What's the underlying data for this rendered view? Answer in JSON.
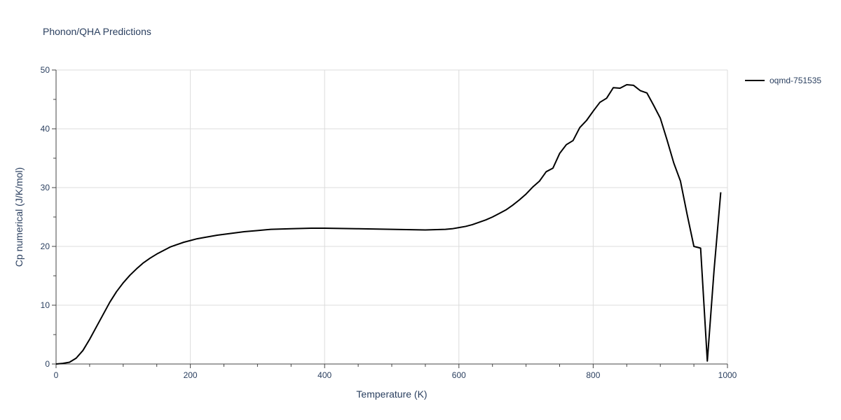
{
  "chart_data": {
    "type": "line",
    "title": "Phonon/QHA Predictions",
    "xlabel": "Temperature (K)",
    "ylabel": "Cp numerical (J/K/mol)",
    "xlim": [
      0,
      1000
    ],
    "ylim": [
      0,
      50
    ],
    "xticks": [
      0,
      200,
      400,
      600,
      800,
      1000
    ],
    "yticks": [
      0,
      10,
      20,
      30,
      40,
      50
    ],
    "grid": true,
    "legend_position": "top-right",
    "series": [
      {
        "name": "oqmd-751535",
        "color": "#000000",
        "x": [
          0,
          10,
          20,
          30,
          40,
          50,
          60,
          70,
          80,
          90,
          100,
          110,
          120,
          130,
          140,
          150,
          160,
          170,
          180,
          190,
          200,
          210,
          220,
          240,
          260,
          280,
          300,
          320,
          350,
          380,
          400,
          450,
          500,
          550,
          580,
          590,
          600,
          610,
          620,
          630,
          640,
          650,
          660,
          670,
          680,
          690,
          700,
          710,
          720,
          730,
          740,
          750,
          760,
          770,
          780,
          790,
          800,
          810,
          820,
          830,
          840,
          850,
          860,
          870,
          880,
          890,
          900,
          910,
          920,
          930,
          940,
          950,
          960,
          970,
          980,
          990
        ],
        "y": [
          0,
          0.1,
          0.3,
          1.0,
          2.3,
          4.2,
          6.3,
          8.4,
          10.5,
          12.3,
          13.8,
          15.1,
          16.2,
          17.2,
          18.0,
          18.7,
          19.3,
          19.9,
          20.3,
          20.7,
          21.0,
          21.3,
          21.5,
          21.9,
          22.2,
          22.5,
          22.7,
          22.9,
          23.0,
          23.1,
          23.1,
          23.0,
          22.9,
          22.8,
          22.9,
          23.0,
          23.2,
          23.4,
          23.7,
          24.1,
          24.5,
          25.0,
          25.6,
          26.2,
          27.0,
          27.9,
          28.9,
          30.1,
          31.1,
          32.7,
          33.3,
          35.8,
          37.3,
          38.0,
          40.2,
          41.4,
          43.0,
          44.5,
          45.2,
          47.0,
          46.9,
          47.5,
          47.4,
          46.5,
          46.1,
          44.0,
          41.8,
          38.1,
          34.2,
          31.1,
          25.4,
          20.0,
          19.7,
          0.5,
          15.9,
          29.2
        ]
      }
    ]
  }
}
